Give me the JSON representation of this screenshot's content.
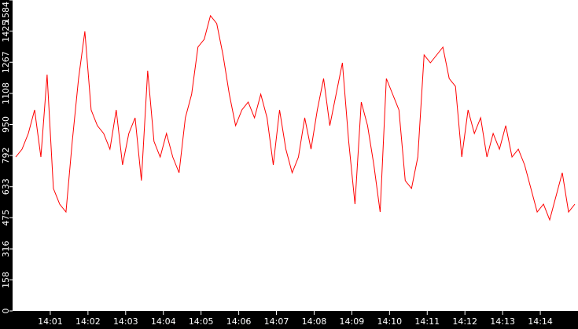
{
  "chart_data": {
    "type": "line",
    "title": "",
    "xlabel": "",
    "ylabel": "",
    "x_start": "14:00:00",
    "x_interval_seconds": 10,
    "xlim": [
      "14:00",
      "14:15"
    ],
    "ylim": [
      0,
      1584
    ],
    "y_ticks": [
      "0",
      "158",
      "316",
      "475",
      "633",
      "792",
      "950",
      "1108",
      "1267",
      "1425",
      "1584"
    ],
    "x_ticks": [
      "14:01",
      "14:02",
      "14:03",
      "14:04",
      "14:05",
      "14:06",
      "14:07",
      "14:08",
      "14:09",
      "14:10",
      "14:11",
      "14:12",
      "14:13",
      "14:14"
    ],
    "grid": false,
    "colors": {
      "line": "#ff0000",
      "background": "#ffffff",
      "frame": "#000000"
    },
    "series": [
      {
        "values": [
          784,
          824,
          904,
          1024,
          784,
          1204,
          624,
          544,
          504,
          864,
          1184,
          1424,
          1024,
          944,
          904,
          824,
          1024,
          744,
          904,
          984,
          664,
          1224,
          864,
          784,
          904,
          784,
          704,
          984,
          1104,
          1344,
          1384,
          1504,
          1464,
          1304,
          1104,
          944,
          1024,
          1064,
          984,
          1104,
          984,
          744,
          1024,
          824,
          704,
          784,
          984,
          824,
          1024,
          1184,
          944,
          1104,
          1264,
          864,
          544,
          1064,
          944,
          744,
          504,
          1184,
          1104,
          1024,
          664,
          624,
          784,
          1304,
          1264,
          1304,
          1344,
          1184,
          1144,
          784,
          1024,
          904,
          984,
          784,
          904,
          824,
          944,
          784,
          824,
          744,
          624,
          504,
          544,
          464,
          584,
          704,
          504,
          544
        ]
      }
    ]
  }
}
